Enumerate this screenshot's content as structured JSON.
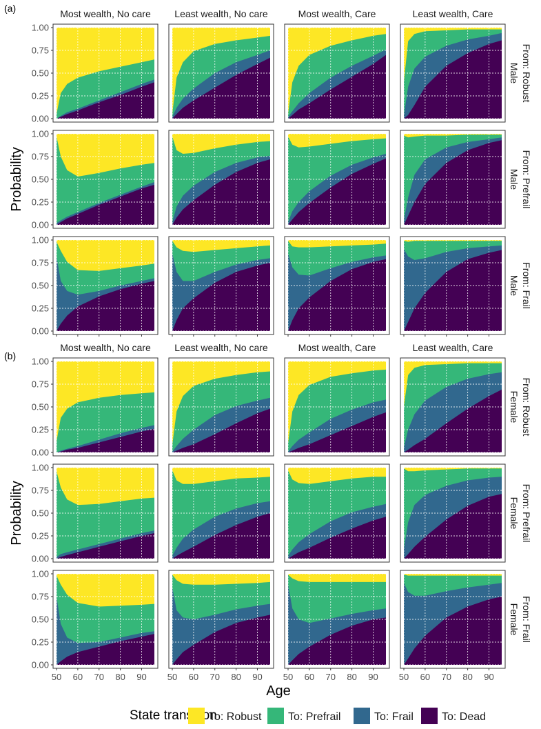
{
  "chart_data": {
    "type": "area",
    "stacked": true,
    "part_labels": [
      "(a)",
      "(b)"
    ],
    "xlabel": "Age",
    "ylabel": "Probability",
    "x_range": [
      50,
      96
    ],
    "ylim": [
      0,
      1
    ],
    "x_ticks": [
      50,
      60,
      70,
      80,
      90
    ],
    "x_tick_labels": [
      "50",
      "60",
      "70",
      "80",
      "90"
    ],
    "y_ticks": [
      0,
      0.25,
      0.5,
      0.75,
      1
    ],
    "y_tick_labels": [
      "0.00",
      "0.25",
      "0.50",
      "0.75",
      "1.00"
    ],
    "ages": [
      50,
      52,
      55,
      60,
      70,
      80,
      90,
      96
    ],
    "columns": [
      "Most wealth, No care",
      "Least wealth, No care",
      "Most wealth, Care",
      "Least wealth, Care"
    ],
    "rows": [
      {
        "sex": "Male",
        "from": "From: Robust"
      },
      {
        "sex": "Male",
        "from": "From: Prefrail"
      },
      {
        "sex": "Male",
        "from": "From: Frail"
      },
      {
        "sex": "Female",
        "from": "From: Robust"
      },
      {
        "sex": "Female",
        "from": "From: Prefrail"
      },
      {
        "sex": "Female",
        "from": "From: Frail"
      }
    ],
    "legend_title": "State transition",
    "legend_position": "bottom",
    "series": [
      {
        "name": "To: Robust",
        "color": "#FDE725"
      },
      {
        "name": "To: Prefrail",
        "color": "#35B779"
      },
      {
        "name": "To: Frail",
        "color": "#31688E"
      },
      {
        "name": "To: Dead",
        "color": "#440154"
      }
    ],
    "boundary_notes": "Each panel stores three cumulative boundaries at the ages listed: dead = P(Dead), frail = P(Dead)+P(Frail), prefrail = P(Dead)+P(Frail)+P(Prefrail). Robust fills the remainder up to 1.",
    "panels": [
      [
        {
          "dead": [
            0,
            0.02,
            0.05,
            0.09,
            0.18,
            0.26,
            0.35,
            0.4
          ],
          "frail": [
            0,
            0.03,
            0.07,
            0.11,
            0.2,
            0.29,
            0.38,
            0.43
          ],
          "prefrail": [
            0.05,
            0.28,
            0.38,
            0.45,
            0.52,
            0.57,
            0.62,
            0.65
          ]
        },
        {
          "dead": [
            0,
            0.05,
            0.12,
            0.2,
            0.34,
            0.48,
            0.6,
            0.67
          ],
          "frail": [
            0.02,
            0.12,
            0.22,
            0.33,
            0.5,
            0.62,
            0.7,
            0.75
          ],
          "prefrail": [
            0.05,
            0.45,
            0.62,
            0.74,
            0.82,
            0.86,
            0.89,
            0.91
          ]
        },
        {
          "dead": [
            0,
            0.04,
            0.1,
            0.17,
            0.32,
            0.46,
            0.6,
            0.7
          ],
          "frail": [
            0.02,
            0.08,
            0.17,
            0.28,
            0.45,
            0.58,
            0.69,
            0.76
          ],
          "prefrail": [
            0.05,
            0.4,
            0.58,
            0.7,
            0.8,
            0.86,
            0.91,
            0.93
          ]
        },
        {
          "dead": [
            0,
            0.04,
            0.15,
            0.35,
            0.58,
            0.72,
            0.82,
            0.86
          ],
          "frail": [
            0.03,
            0.35,
            0.55,
            0.68,
            0.8,
            0.87,
            0.91,
            0.94
          ],
          "prefrail": [
            0.4,
            0.85,
            0.93,
            0.96,
            0.97,
            0.98,
            0.98,
            0.98
          ]
        }
      ],
      [
        {
          "dead": [
            0,
            0.03,
            0.07,
            0.12,
            0.22,
            0.31,
            0.4,
            0.44
          ],
          "frail": [
            0.02,
            0.05,
            0.09,
            0.14,
            0.24,
            0.33,
            0.42,
            0.47
          ],
          "prefrail": [
            0.97,
            0.75,
            0.6,
            0.53,
            0.57,
            0.62,
            0.66,
            0.68
          ]
        },
        {
          "dead": [
            0,
            0.08,
            0.17,
            0.27,
            0.44,
            0.58,
            0.68,
            0.72
          ],
          "frail": [
            0.03,
            0.2,
            0.32,
            0.43,
            0.58,
            0.68,
            0.74,
            0.76
          ],
          "prefrail": [
            0.97,
            0.82,
            0.78,
            0.79,
            0.84,
            0.88,
            0.91,
            0.92
          ]
        },
        {
          "dead": [
            0,
            0.06,
            0.14,
            0.24,
            0.41,
            0.56,
            0.67,
            0.73
          ],
          "frail": [
            0.03,
            0.15,
            0.25,
            0.37,
            0.54,
            0.66,
            0.74,
            0.78
          ],
          "prefrail": [
            0.97,
            0.88,
            0.85,
            0.86,
            0.89,
            0.92,
            0.94,
            0.95
          ]
        },
        {
          "dead": [
            0,
            0.1,
            0.25,
            0.45,
            0.68,
            0.82,
            0.9,
            0.93
          ],
          "frail": [
            0.05,
            0.3,
            0.55,
            0.72,
            0.85,
            0.91,
            0.94,
            0.96
          ],
          "prefrail": [
            0.98,
            0.96,
            0.97,
            0.98,
            0.98,
            0.99,
            0.99,
            0.99
          ]
        }
      ],
      [
        {
          "dead": [
            0,
            0.08,
            0.17,
            0.27,
            0.38,
            0.46,
            0.52,
            0.55
          ],
          "frail": [
            0.82,
            0.55,
            0.44,
            0.4,
            0.44,
            0.5,
            0.55,
            0.58
          ],
          "prefrail": [
            0.98,
            0.88,
            0.76,
            0.67,
            0.66,
            0.69,
            0.72,
            0.74
          ]
        },
        {
          "dead": [
            0,
            0.12,
            0.25,
            0.36,
            0.53,
            0.65,
            0.72,
            0.75
          ],
          "frail": [
            0.85,
            0.65,
            0.55,
            0.55,
            0.65,
            0.73,
            0.78,
            0.8
          ],
          "prefrail": [
            0.99,
            0.92,
            0.88,
            0.87,
            0.89,
            0.91,
            0.93,
            0.94
          ]
        },
        {
          "dead": [
            0,
            0.12,
            0.25,
            0.37,
            0.55,
            0.68,
            0.76,
            0.79
          ],
          "frail": [
            0.85,
            0.7,
            0.62,
            0.61,
            0.69,
            0.76,
            0.81,
            0.83
          ],
          "prefrail": [
            0.99,
            0.93,
            0.92,
            0.92,
            0.93,
            0.94,
            0.95,
            0.96
          ]
        },
        {
          "dead": [
            0,
            0.1,
            0.25,
            0.42,
            0.65,
            0.79,
            0.86,
            0.89
          ],
          "frail": [
            0.9,
            0.82,
            0.78,
            0.8,
            0.87,
            0.91,
            0.93,
            0.94
          ],
          "prefrail": [
            0.99,
            0.98,
            0.99,
            0.99,
            0.99,
            0.99,
            0.99,
            0.99
          ]
        }
      ],
      [
        {
          "dead": [
            0,
            0.01,
            0.03,
            0.05,
            0.11,
            0.17,
            0.23,
            0.26
          ],
          "frail": [
            0,
            0.02,
            0.04,
            0.07,
            0.14,
            0.21,
            0.27,
            0.3
          ],
          "prefrail": [
            0.12,
            0.38,
            0.48,
            0.55,
            0.6,
            0.63,
            0.65,
            0.66
          ]
        },
        {
          "dead": [
            0,
            0.02,
            0.05,
            0.09,
            0.2,
            0.32,
            0.43,
            0.48
          ],
          "frail": [
            0.01,
            0.07,
            0.15,
            0.25,
            0.41,
            0.51,
            0.57,
            0.6
          ],
          "prefrail": [
            0.08,
            0.45,
            0.62,
            0.73,
            0.81,
            0.85,
            0.88,
            0.89
          ]
        },
        {
          "dead": [
            0,
            0.02,
            0.05,
            0.09,
            0.19,
            0.29,
            0.39,
            0.44
          ],
          "frail": [
            0.01,
            0.07,
            0.14,
            0.22,
            0.37,
            0.47,
            0.55,
            0.58
          ],
          "prefrail": [
            0.1,
            0.45,
            0.63,
            0.74,
            0.83,
            0.87,
            0.9,
            0.91
          ]
        },
        {
          "dead": [
            0,
            0.03,
            0.08,
            0.15,
            0.32,
            0.48,
            0.62,
            0.69
          ],
          "frail": [
            0.05,
            0.25,
            0.42,
            0.57,
            0.72,
            0.81,
            0.86,
            0.88
          ],
          "prefrail": [
            0.5,
            0.85,
            0.93,
            0.96,
            0.97,
            0.98,
            0.98,
            0.98
          ]
        }
      ],
      [
        {
          "dead": [
            0,
            0.02,
            0.04,
            0.07,
            0.13,
            0.19,
            0.25,
            0.28
          ],
          "frail": [
            0.02,
            0.05,
            0.07,
            0.1,
            0.16,
            0.22,
            0.28,
            0.31
          ],
          "prefrail": [
            0.96,
            0.78,
            0.65,
            0.59,
            0.6,
            0.63,
            0.66,
            0.67
          ]
        },
        {
          "dead": [
            0,
            0.03,
            0.07,
            0.13,
            0.26,
            0.37,
            0.46,
            0.5
          ],
          "frail": [
            0.03,
            0.12,
            0.22,
            0.32,
            0.46,
            0.55,
            0.61,
            0.63
          ],
          "prefrail": [
            0.97,
            0.86,
            0.82,
            0.82,
            0.85,
            0.88,
            0.89,
            0.9
          ]
        },
        {
          "dead": [
            0,
            0.03,
            0.07,
            0.12,
            0.23,
            0.33,
            0.42,
            0.46
          ],
          "frail": [
            0.03,
            0.1,
            0.18,
            0.27,
            0.41,
            0.51,
            0.57,
            0.6
          ],
          "prefrail": [
            0.97,
            0.87,
            0.83,
            0.82,
            0.85,
            0.88,
            0.9,
            0.9
          ]
        },
        {
          "dead": [
            0,
            0.05,
            0.13,
            0.24,
            0.43,
            0.58,
            0.68,
            0.71
          ],
          "frail": [
            0.1,
            0.4,
            0.59,
            0.7,
            0.8,
            0.86,
            0.89,
            0.9
          ],
          "prefrail": [
            0.99,
            0.96,
            0.96,
            0.97,
            0.98,
            0.99,
            0.99,
            0.99
          ]
        }
      ],
      [
        {
          "dead": [
            0,
            0.04,
            0.09,
            0.14,
            0.2,
            0.26,
            0.31,
            0.34
          ],
          "frail": [
            0.75,
            0.45,
            0.3,
            0.24,
            0.25,
            0.3,
            0.35,
            0.37
          ],
          "prefrail": [
            0.98,
            0.88,
            0.77,
            0.68,
            0.64,
            0.65,
            0.66,
            0.67
          ]
        },
        {
          "dead": [
            0,
            0.06,
            0.14,
            0.22,
            0.36,
            0.46,
            0.52,
            0.55
          ],
          "frail": [
            0.85,
            0.6,
            0.52,
            0.5,
            0.55,
            0.61,
            0.65,
            0.67
          ],
          "prefrail": [
            0.99,
            0.93,
            0.89,
            0.88,
            0.88,
            0.89,
            0.9,
            0.91
          ]
        },
        {
          "dead": [
            0,
            0.05,
            0.12,
            0.2,
            0.33,
            0.43,
            0.5,
            0.52
          ],
          "frail": [
            0.88,
            0.62,
            0.5,
            0.46,
            0.51,
            0.56,
            0.6,
            0.62
          ],
          "prefrail": [
            0.99,
            0.95,
            0.92,
            0.91,
            0.91,
            0.91,
            0.91,
            0.91
          ]
        },
        {
          "dead": [
            0,
            0.07,
            0.18,
            0.32,
            0.52,
            0.64,
            0.72,
            0.75
          ],
          "frail": [
            0.9,
            0.8,
            0.76,
            0.76,
            0.81,
            0.85,
            0.88,
            0.9
          ],
          "prefrail": [
            0.99,
            0.98,
            0.98,
            0.98,
            0.98,
            0.98,
            0.98,
            0.98
          ]
        }
      ]
    ]
  }
}
